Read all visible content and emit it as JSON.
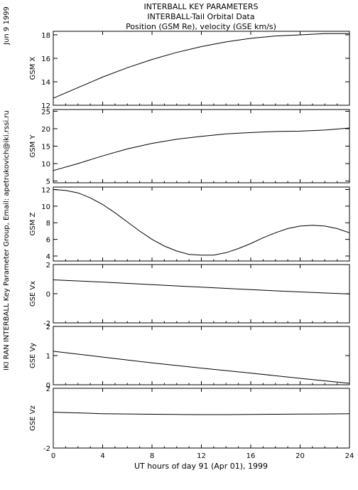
{
  "header": {
    "date": "Jun  9 1999",
    "side_note": "IKI RAN INTERBALL Key Parameter Group, Email: apetrukovich@iki.rssi.ru"
  },
  "chart_data": {
    "type": "line",
    "title": [
      "INTERBALL KEY PARAMETERS",
      "INTERBALL-Tail Orbital Data",
      "Position (GSM Re), velocity (GSE km/s)"
    ],
    "xlabel": "UT hours of day  91 (Apr 01), 1999",
    "xlim": [
      0,
      24
    ],
    "xticks": [
      0,
      4,
      8,
      12,
      16,
      20,
      24
    ],
    "grid": false,
    "panels": [
      {
        "name": "gsm-x",
        "ylabel": "GSM X",
        "ylim": [
          12,
          18.3
        ],
        "yticks": [
          12,
          14,
          16,
          18
        ],
        "x": [
          0,
          2,
          4,
          6,
          8,
          10,
          12,
          14,
          16,
          18,
          20,
          22,
          24
        ],
        "y": [
          12.6,
          13.5,
          14.4,
          15.2,
          15.9,
          16.5,
          17.0,
          17.4,
          17.7,
          17.9,
          18.0,
          18.1,
          18.1
        ]
      },
      {
        "name": "gsm-y",
        "ylabel": "GSM Y",
        "ylim": [
          4.5,
          25.5
        ],
        "yticks": [
          5,
          10,
          15,
          20,
          25
        ],
        "x": [
          0,
          2,
          4,
          6,
          8,
          10,
          12,
          14,
          16,
          18,
          20,
          22,
          24
        ],
        "y": [
          8.0,
          10.0,
          12.2,
          14.2,
          15.8,
          17.0,
          17.8,
          18.5,
          18.9,
          19.2,
          19.3,
          19.6,
          20.2
        ]
      },
      {
        "name": "gsm-z",
        "ylabel": "GSM Z",
        "ylim": [
          3.4,
          12.3
        ],
        "yticks": [
          4,
          6,
          8,
          10,
          12
        ],
        "x": [
          0,
          1,
          2,
          3,
          4,
          5,
          6,
          7,
          8,
          9,
          10,
          11,
          12,
          13,
          14,
          15,
          16,
          17,
          18,
          19,
          20,
          21,
          22,
          23,
          24
        ],
        "y": [
          12.0,
          11.9,
          11.6,
          11.0,
          10.2,
          9.2,
          8.1,
          7.0,
          6.0,
          5.2,
          4.6,
          4.2,
          4.1,
          4.1,
          4.4,
          4.9,
          5.5,
          6.2,
          6.8,
          7.3,
          7.6,
          7.7,
          7.6,
          7.3,
          6.8
        ]
      },
      {
        "name": "gse-vx",
        "ylabel": "GSE Vx",
        "ylim": [
          -2,
          2
        ],
        "yticks": [
          -2,
          0,
          2
        ],
        "x": [
          0,
          4,
          8,
          12,
          16,
          20,
          24
        ],
        "y": [
          0.95,
          0.8,
          0.62,
          0.45,
          0.28,
          0.12,
          -0.02
        ]
      },
      {
        "name": "gse-vy",
        "ylabel": "GSE Vy",
        "ylim": [
          0,
          2
        ],
        "yticks": [
          0,
          1,
          2
        ],
        "x": [
          0,
          4,
          8,
          12,
          16,
          20,
          24
        ],
        "y": [
          1.15,
          0.95,
          0.75,
          0.57,
          0.4,
          0.22,
          0.05
        ]
      },
      {
        "name": "gse-vz",
        "ylabel": "GSE Vz",
        "ylim": [
          -2,
          2
        ],
        "yticks": [
          -2,
          2
        ],
        "x": [
          0,
          2,
          4,
          6,
          8,
          10,
          12,
          14,
          16,
          18,
          20,
          22,
          24
        ],
        "y": [
          0.4,
          0.35,
          0.3,
          0.28,
          0.26,
          0.25,
          0.24,
          0.24,
          0.25,
          0.26,
          0.27,
          0.28,
          0.3
        ]
      }
    ]
  }
}
